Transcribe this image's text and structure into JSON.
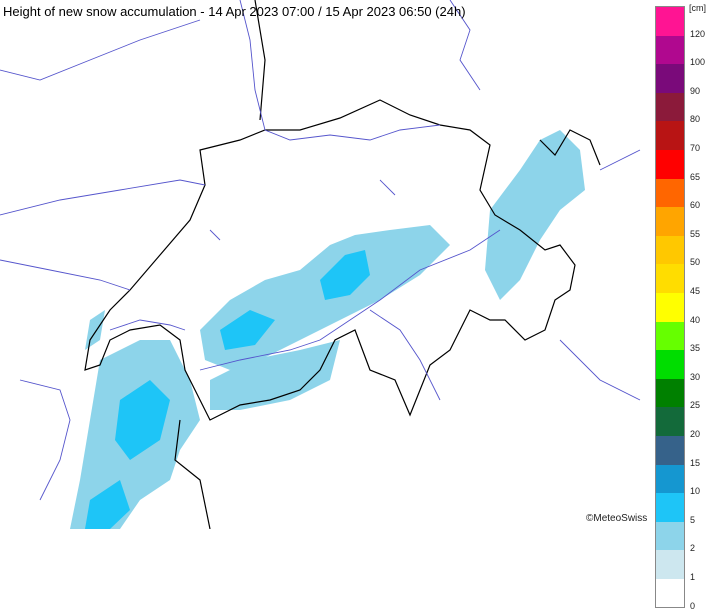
{
  "title": "Height of new snow accumulation - 14 Apr 2023 07:00 / 15 Apr 2023 06:50 (24h)",
  "legend": {
    "unit": "[cm]",
    "labels": [
      "120",
      "100",
      "90",
      "80",
      "70",
      "65",
      "60",
      "55",
      "50",
      "45",
      "40",
      "35",
      "30",
      "25",
      "20",
      "15",
      "10",
      "5",
      "2",
      "1",
      "0"
    ],
    "colors_top_to_bottom": [
      "#ff1493",
      "#b0088f",
      "#7a0a7a",
      "#8b1a3a",
      "#b81414",
      "#ff0000",
      "#ff6600",
      "#ffa500",
      "#ffc800",
      "#ffdd00",
      "#ffff00",
      "#66ff00",
      "#00dd00",
      "#008000",
      "#136a3a",
      "#36628a",
      "#1597d0",
      "#1ec5f7",
      "#8dd4ea",
      "#cde7ef",
      "#ffffff"
    ]
  },
  "map": {
    "border_color": "#000000",
    "river_lake_color": "#5555cc",
    "snow_light": "#8dd4ea",
    "snow_medium": "#1ec5f7"
  },
  "credit": "©MeteoSwiss"
}
